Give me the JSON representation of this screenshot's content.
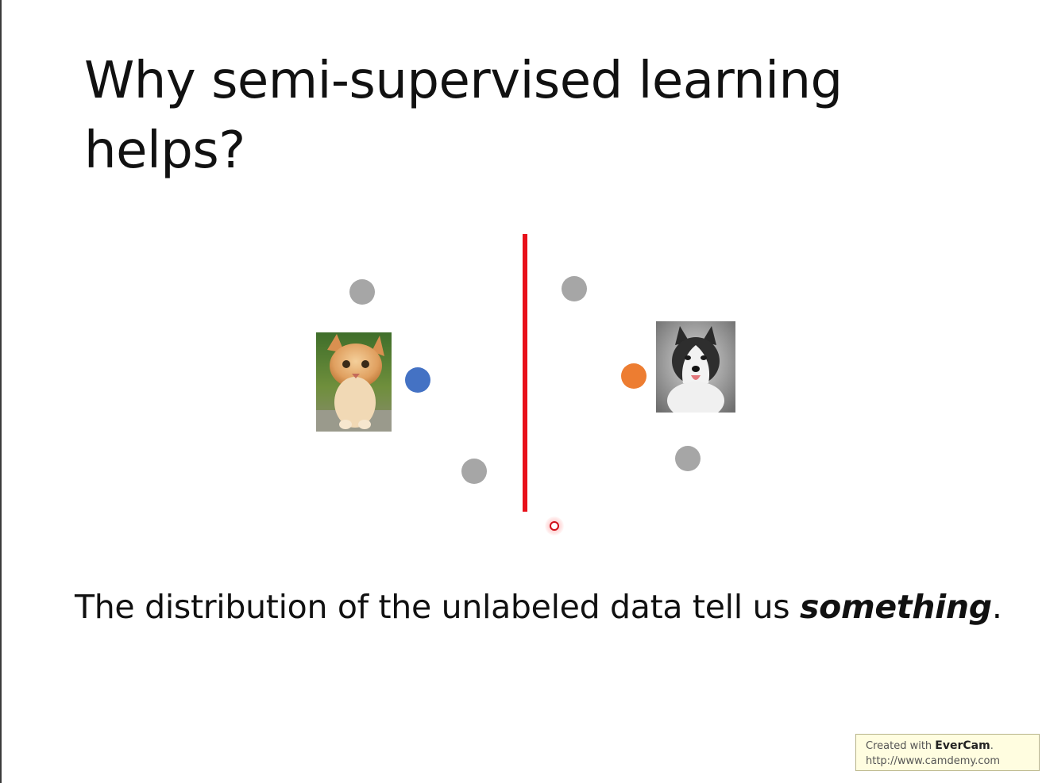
{
  "slide": {
    "title": "Why semi-supervised learning helps?",
    "caption_prefix": "The distribution of the unlabeled data tell us ",
    "caption_emphasis": "something",
    "caption_suffix": "."
  },
  "figure": {
    "images": [
      {
        "name": "kitten-photo",
        "label": "cat"
      },
      {
        "name": "husky-photo",
        "label": "dog"
      }
    ],
    "colors": {
      "unlabeled": "#a6a6a6",
      "cat_class": "#4472c4",
      "dog_class": "#ed7d31",
      "decision_boundary": "#e8101a"
    }
  },
  "watermark": {
    "prefix": "Created with ",
    "brand": "EverCam",
    "suffix": ".",
    "url": "http://www.camdemy.com"
  }
}
